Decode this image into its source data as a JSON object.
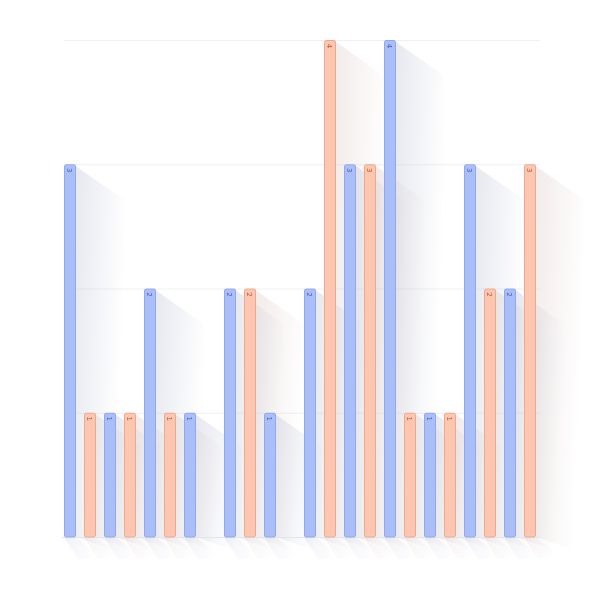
{
  "chart_data": {
    "type": "bar",
    "categories": [
      "",
      "",
      "",
      "",
      "",
      "",
      "",
      "",
      "",
      "",
      "",
      "",
      "",
      "",
      "",
      "",
      "",
      "",
      "",
      "",
      "",
      "",
      "",
      "",
      ""
    ],
    "series": [
      {
        "values": [
          3,
          0,
          1,
          0,
          2,
          0,
          1,
          0,
          2,
          0,
          1,
          0,
          2,
          0,
          3,
          0,
          4,
          0,
          1,
          0,
          3,
          0,
          2,
          0,
          null
        ]
      },
      {
        "values": [
          0,
          1,
          0,
          1,
          0,
          1,
          0,
          0,
          0,
          2,
          0,
          0,
          0,
          4,
          0,
          3,
          0,
          1,
          0,
          1,
          0,
          2,
          0,
          3,
          null
        ]
      }
    ],
    "ylim": [
      0,
      4
    ],
    "grid": true,
    "legend": "none",
    "colors": {
      "series_fill": [
        "#aabff8",
        "#fcc6b0"
      ],
      "series_stroke": [
        "#8fa8f0",
        "#f0a98c"
      ],
      "series_text": [
        "#4a5fa8",
        "#b0593a"
      ],
      "shadow": "#c9cede",
      "gridline": "#eef0f4",
      "baseline": "#e2e5ec"
    }
  }
}
